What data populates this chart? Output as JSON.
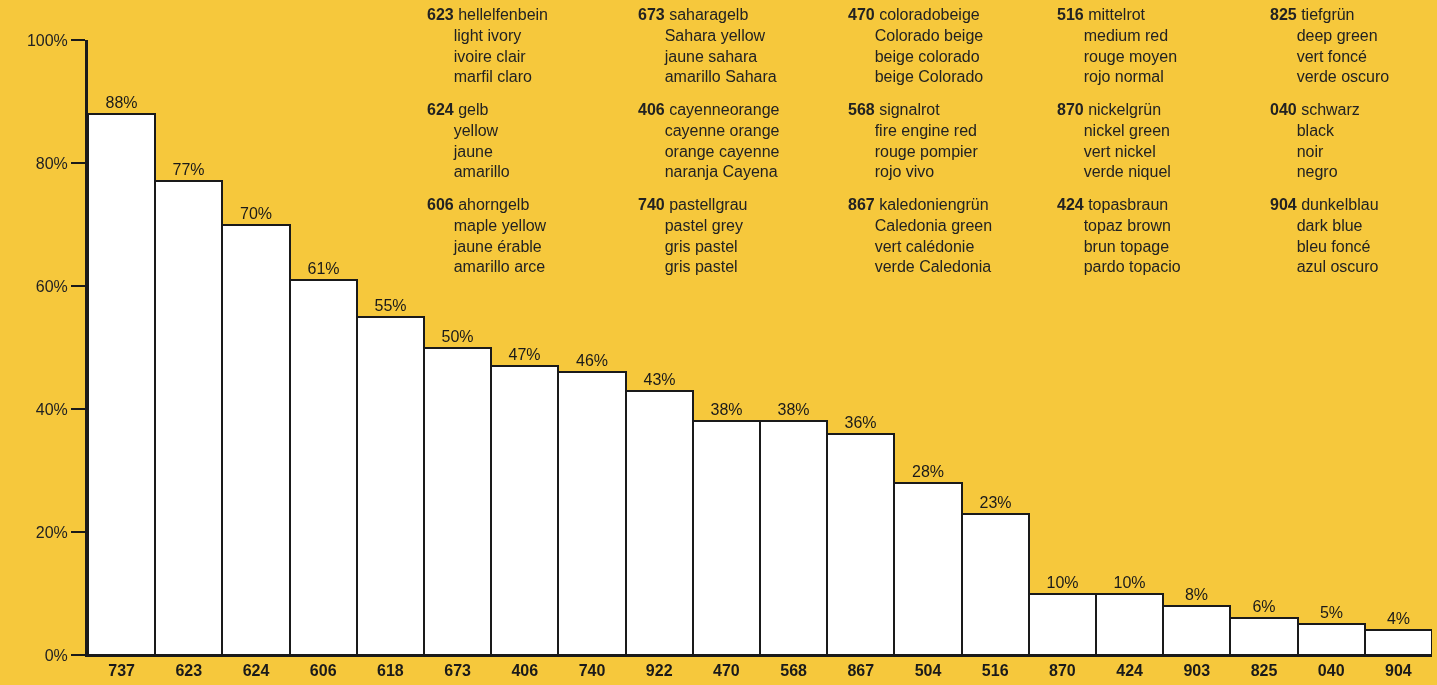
{
  "chart_data": {
    "type": "bar",
    "categories": [
      "737",
      "623",
      "624",
      "606",
      "618",
      "673",
      "406",
      "740",
      "922",
      "470",
      "568",
      "867",
      "504",
      "516",
      "870",
      "424",
      "903",
      "825",
      "040",
      "904"
    ],
    "values": [
      88,
      77,
      70,
      61,
      55,
      50,
      47,
      46,
      43,
      38,
      38,
      36,
      28,
      23,
      10,
      10,
      8,
      6,
      5,
      4
    ],
    "value_labels": [
      "88%",
      "77%",
      "70%",
      "61%",
      "55%",
      "50%",
      "47%",
      "46%",
      "43%",
      "38%",
      "38%",
      "36%",
      "28%",
      "23%",
      "10%",
      "10%",
      "8%",
      "6%",
      "5%",
      "4%"
    ],
    "color": "#ffffff",
    "ylim": [
      0,
      100
    ],
    "yticks": [
      {
        "value": 0,
        "label": "0%"
      },
      {
        "value": 20,
        "label": "20%"
      },
      {
        "value": 40,
        "label": "40%"
      },
      {
        "value": 60,
        "label": "60%"
      },
      {
        "value": 80,
        "label": "80%"
      },
      {
        "value": 100,
        "label": "100%"
      }
    ],
    "grid": false,
    "annotations": [
      "623 hellelfenbein\nlight ivory\nivoire clair\nmarfil claro",
      "673 saharagelb\nSahara yellow\njaune sahara\namarillo Sahara",
      "470 coloradobeige\nColorado beige\nbeige colorado\nbeige Colorado",
      "516 mittelrot\nmedium red\nrouge moyen\nrojo normal",
      "825 tiefgrün\ndeep green\nvert foncé\nverde oscuro",
      "624 gelb\nyellow\njaune\namarillo",
      "406 cayenneorange\ncayenne orange\norange cayenne\nnaranja Cayena",
      "568 signalrot\nfire engine red\nrouge pompier\nrojo vivo",
      "870 nickelgrün\nnickel green\nvert nickel\nverde niquel",
      "040 schwarz\nblack\nnoir\nnegro",
      "606 ahorngelb\nmaple yellow\njaune érable\namarillo arce",
      "740 pastellgrau\npastel grey\ngris pastel\ngris pastel",
      "867 kaledoniengrün\nCaledonia green\nvert calédonie\nverde Caledonia",
      "424 topasbraun\ntopaz brown\nbrun topage\npardo topacio",
      "904 dunkelblau\ndark blue\nbleu foncé\nazul oscuro"
    ]
  }
}
